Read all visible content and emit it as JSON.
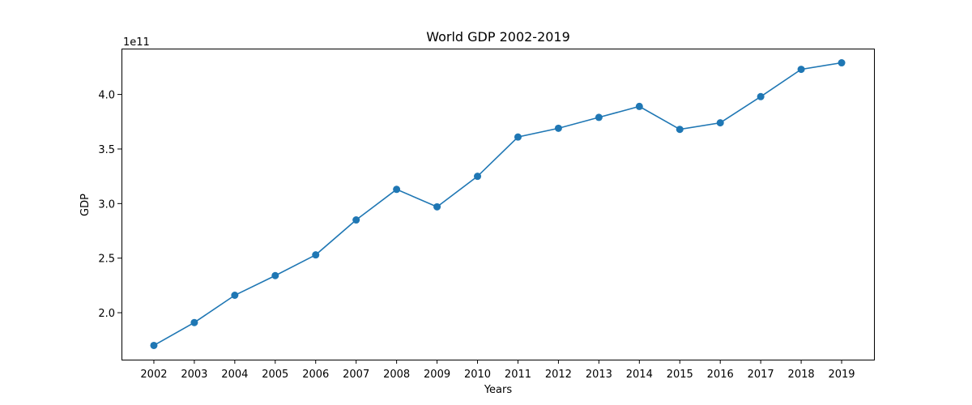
{
  "chart_data": {
    "type": "line",
    "title": "World GDP 2002-2019",
    "xlabel": "Years",
    "ylabel": "GDP",
    "y_offset_label": "1e11",
    "y_scale": 100000000000.0,
    "x": [
      2002,
      2003,
      2004,
      2005,
      2006,
      2007,
      2008,
      2009,
      2010,
      2011,
      2012,
      2013,
      2014,
      2015,
      2016,
      2017,
      2018,
      2019
    ],
    "x_tick_labels": [
      "2002",
      "2003",
      "2004",
      "2005",
      "2006",
      "2007",
      "2008",
      "2009",
      "2010",
      "2011",
      "2012",
      "2013",
      "2014",
      "2015",
      "2016",
      "2017",
      "2018",
      "2019"
    ],
    "series": [
      {
        "values": [
          170000000000.0,
          191000000000.0,
          216000000000.0,
          234000000000.0,
          253000000000.0,
          285000000000.0,
          313000000000.0,
          297000000000.0,
          325000000000.0,
          361000000000.0,
          369000000000.0,
          379000000000.0,
          389000000000.0,
          368000000000.0,
          374000000000.0,
          398000000000.0,
          423000000000.0,
          429000000000.0
        ],
        "color": "#1f77b4",
        "marker": "circle"
      }
    ],
    "y_ticks": [
      200000000000.0,
      250000000000.0,
      300000000000.0,
      350000000000.0,
      400000000000.0
    ],
    "y_tick_labels": [
      "2.0",
      "2.5",
      "3.0",
      "3.5",
      "4.0"
    ],
    "xlim": [
      2001.2,
      2019.8
    ],
    "ylim": [
      157000000000.0,
      442000000000.0
    ],
    "grid": false,
    "legend": false
  }
}
